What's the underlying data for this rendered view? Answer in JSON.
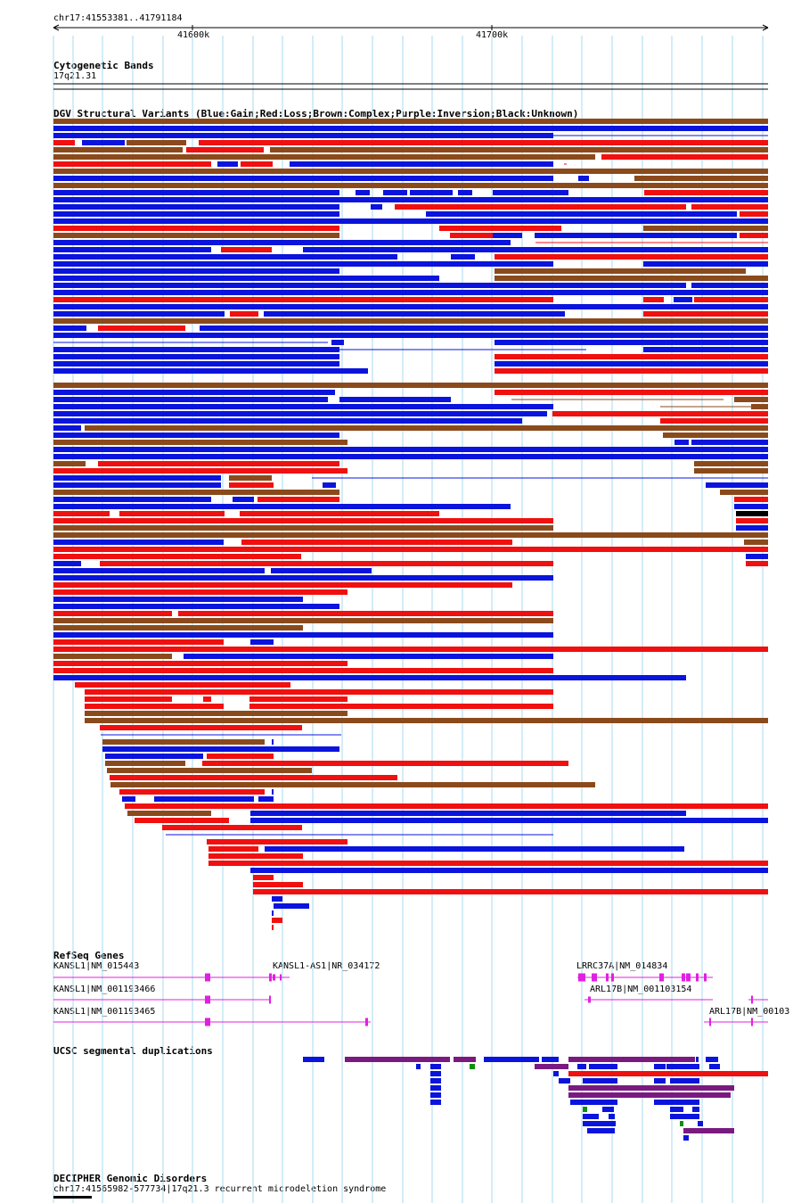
{
  "locus": "chr17:41553381..41791184",
  "ruler": {
    "ticks": [
      "41600k",
      "41700k"
    ]
  },
  "tracks": {
    "cytoband": {
      "title": "Cytogenetic Bands",
      "label": "17q21.31"
    },
    "dgv": {
      "title": "DGV Structural Variants (Blue:Gain;Red:Loss;Brown:Complex;Purple:Inversion;Black:Unknown)"
    },
    "refseq": {
      "title": "RefSeq Genes",
      "genes": [
        {
          "label": "KANSL1|NM_015443"
        },
        {
          "label": "KANSL1-AS1|NR_034172"
        },
        {
          "label": "LRRC37A|NM_014834"
        },
        {
          "label": "KANSL1|NM_001193466"
        },
        {
          "label": "ARL17B|NM_001103154"
        },
        {
          "label": "KANSL1|NM_001193465"
        },
        {
          "label": "ARL17B|NM_00103"
        }
      ]
    },
    "segdups": {
      "title": "UCSC segmental duplications"
    },
    "decipher": {
      "title": "DECIPHER Genomic Disorders",
      "label": "chr17:41565982-577734|17q21.3 recurrent microdeletion syndrome"
    }
  },
  "colors": {
    "gain": "#0a14dc",
    "loss": "#f01010",
    "complex": "#8b4a1c",
    "inversion": "#7a1a80",
    "unknown": "#000000",
    "gene": "#e020e0",
    "grid": "#a8d8f0",
    "segdup_green": "#109010"
  }
}
